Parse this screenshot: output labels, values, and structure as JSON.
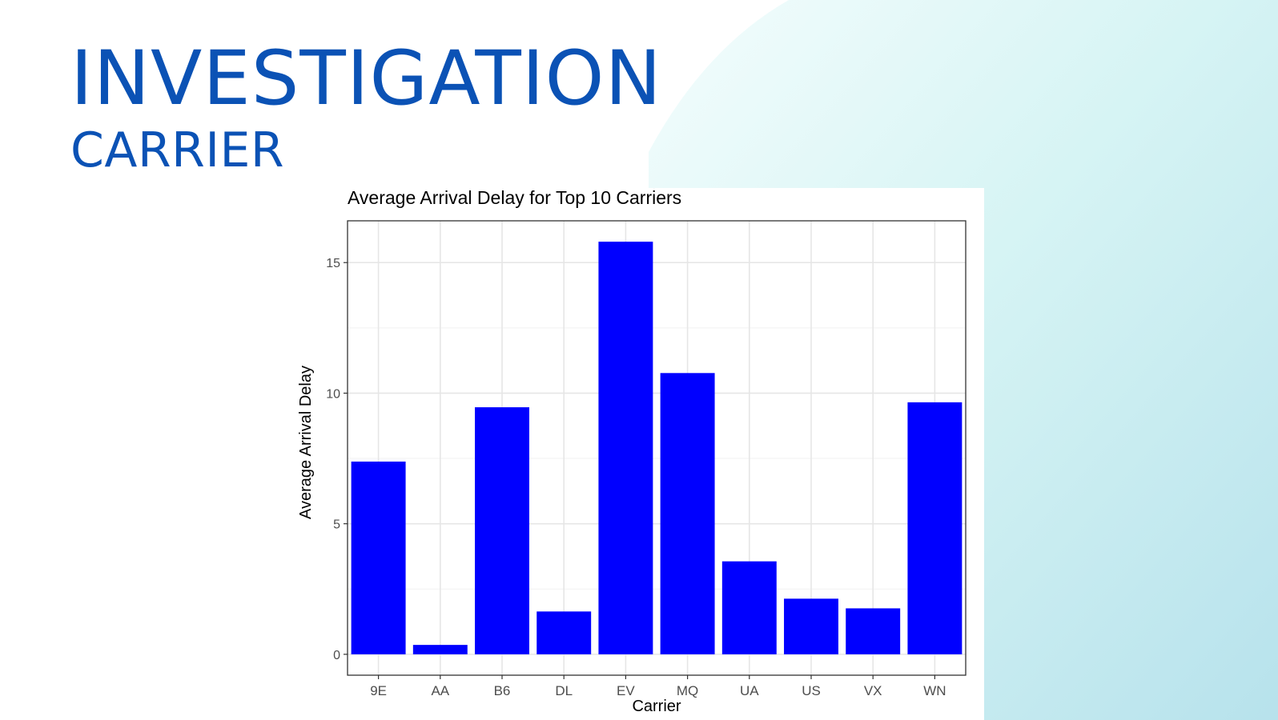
{
  "slide": {
    "title": "INVESTIGATION",
    "subtitle": "CARRIER"
  },
  "colors": {
    "title": "#0b52b5",
    "bar_fill": "#0000ff",
    "grid": "#ebebeb",
    "panel_border": "#333333",
    "bg_gradient_light": "#e8fbfb",
    "bg_gradient_dark": "#b7e2ec"
  },
  "chart_data": {
    "type": "bar",
    "title": "Average Arrival Delay for Top 10 Carriers",
    "xlabel": "Carrier",
    "ylabel": "Average Arrival Delay",
    "categories": [
      "9E",
      "AA",
      "B6",
      "DL",
      "EV",
      "MQ",
      "UA",
      "US",
      "VX",
      "WN"
    ],
    "values": [
      7.38,
      0.36,
      9.46,
      1.64,
      15.8,
      10.77,
      3.56,
      2.13,
      1.76,
      9.65
    ],
    "ylim": [
      -0.8,
      16.6
    ],
    "yticks": [
      0,
      5,
      10,
      15
    ],
    "ytick_labels": [
      "0",
      "5",
      "10",
      "15"
    ],
    "grid": true,
    "legend": "none"
  }
}
